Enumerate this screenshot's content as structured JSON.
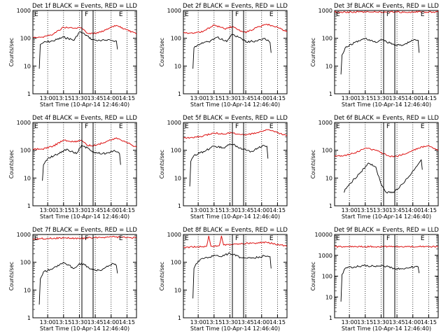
{
  "chart_data": [
    {
      "type": "line",
      "title": "Det 1f BLACK = Events, RED = LLD",
      "xlabel": "Start Time (10-Apr-14 12:46:40)",
      "ylabel": "Counts/sec",
      "ylim": [
        1,
        1000
      ],
      "yscale": "log",
      "yticks": [
        "1",
        "10",
        "100",
        "1000"
      ],
      "xticks": [
        "13:00",
        "13:15",
        "13:30",
        "13:45",
        "14:00",
        "14:15"
      ],
      "markers": [
        {
          "label": "E",
          "t": -0.06
        },
        {
          "label": "F",
          "t": 0.44
        },
        {
          "label": "E",
          "t": 0.77
        }
      ],
      "series": [
        {
          "name": "BLACK = Events",
          "color": "#000000",
          "x": [
            "12:52",
            "12:53",
            "12:56",
            "13:05",
            "13:15",
            "13:25",
            "13:30",
            "13:35",
            "13:42",
            "13:50",
            "13:57",
            "14:02",
            "14:05",
            "14:06"
          ],
          "values": [
            8,
            60,
            70,
            80,
            110,
            85,
            170,
            140,
            90,
            80,
            90,
            80,
            80,
            40
          ]
        },
        {
          "name": "RED = LLD",
          "color": "#dd1111",
          "x": [
            "12:46",
            "12:55",
            "13:05",
            "13:15",
            "13:25",
            "13:32",
            "13:38",
            "13:45",
            "13:55",
            "14:05",
            "14:15",
            "14:24"
          ],
          "values": [
            110,
            110,
            140,
            250,
            230,
            240,
            150,
            150,
            200,
            290,
            200,
            140
          ]
        }
      ]
    },
    {
      "type": "line",
      "title": "Det 2f BLACK = Events, RED = LLD",
      "xlabel": "Start Time (10-Apr-14 12:46:40)",
      "ylabel": "Counts/sec",
      "ylim": [
        1,
        1000
      ],
      "yscale": "log",
      "yticks": [
        "1",
        "10",
        "100",
        "1000"
      ],
      "xticks": [
        "13:00",
        "13:15",
        "13:30",
        "13:45",
        "14:00",
        "14:15"
      ],
      "markers": [
        {
          "label": "E",
          "t": -0.06
        },
        {
          "label": "F",
          "t": 0.44
        },
        {
          "label": "E",
          "t": 0.77
        }
      ],
      "series": [
        {
          "name": "BLACK = Events",
          "color": "#000000",
          "x": [
            "12:55",
            "12:56",
            "13:00",
            "13:10",
            "13:18",
            "13:27",
            "13:32",
            "13:38",
            "13:45",
            "13:55",
            "14:03",
            "14:08",
            "14:09"
          ],
          "values": [
            8,
            45,
            60,
            75,
            110,
            75,
            140,
            110,
            75,
            80,
            100,
            70,
            30
          ]
        },
        {
          "name": "RED = LLD",
          "color": "#dd1111",
          "x": [
            "12:46",
            "12:55",
            "13:05",
            "13:15",
            "13:25",
            "13:32",
            "13:38",
            "13:45",
            "13:55",
            "14:05",
            "14:15",
            "14:24"
          ],
          "values": [
            160,
            150,
            180,
            300,
            220,
            260,
            200,
            160,
            240,
            320,
            250,
            170
          ]
        }
      ]
    },
    {
      "type": "line",
      "title": "Det 3f BLACK = Events, RED = LLD",
      "xlabel": "Start Time (10-Apr-14 12:46:40)",
      "ylabel": "Counts/sec",
      "ylim": [
        1,
        1000
      ],
      "yscale": "log",
      "yticks": [
        "1",
        "10",
        "100",
        "1000"
      ],
      "xticks": [
        "13:00",
        "13:15",
        "13:30",
        "13:45",
        "14:00",
        "14:15"
      ],
      "markers": [
        {
          "label": "E",
          "t": -0.06
        },
        {
          "label": "F",
          "t": 0.44
        },
        {
          "label": "E",
          "t": 0.77
        }
      ],
      "series": [
        {
          "name": "BLACK = Events",
          "color": "#000000",
          "x": [
            "12:52",
            "12:53",
            "12:56",
            "13:05",
            "13:15",
            "13:25",
            "13:30",
            "13:35",
            "13:42",
            "13:50",
            "13:57",
            "14:02",
            "14:05",
            "14:06"
          ],
          "values": [
            5,
            25,
            45,
            70,
            100,
            70,
            90,
            75,
            60,
            55,
            75,
            90,
            85,
            30
          ]
        },
        {
          "name": "RED = LLD",
          "color": "#dd1111",
          "x": [
            "12:46",
            "13:00",
            "13:15",
            "13:30",
            "13:45",
            "14:00",
            "14:15",
            "14:24"
          ],
          "values": [
            880,
            880,
            890,
            880,
            880,
            890,
            880,
            880
          ]
        }
      ]
    },
    {
      "type": "line",
      "title": "Det 4f BLACK = Events, RED = LLD",
      "xlabel": "Start Time (10-Apr-14 12:46:40)",
      "ylabel": "Counts/sec",
      "ylim": [
        1,
        1000
      ],
      "yscale": "log",
      "yticks": [
        "1",
        "10",
        "100",
        "1000"
      ],
      "xticks": [
        "13:00",
        "13:15",
        "13:30",
        "13:45",
        "14:00",
        "14:15"
      ],
      "markers": [
        {
          "label": "E",
          "t": -0.06
        },
        {
          "label": "F",
          "t": 0.44
        },
        {
          "label": "E",
          "t": 0.77
        }
      ],
      "series": [
        {
          "name": "BLACK = Events",
          "color": "#000000",
          "x": [
            "12:55",
            "12:56",
            "13:00",
            "13:10",
            "13:18",
            "13:27",
            "13:32",
            "13:38",
            "13:45",
            "13:55",
            "14:03",
            "14:08",
            "14:09"
          ],
          "values": [
            8,
            30,
            50,
            75,
            110,
            75,
            150,
            120,
            80,
            75,
            100,
            75,
            30
          ]
        },
        {
          "name": "RED = LLD",
          "color": "#dd1111",
          "x": [
            "12:46",
            "12:55",
            "13:05",
            "13:15",
            "13:25",
            "13:32",
            "13:38",
            "13:45",
            "13:55",
            "14:05",
            "14:15",
            "14:24"
          ],
          "values": [
            110,
            110,
            140,
            230,
            200,
            230,
            150,
            150,
            200,
            280,
            190,
            130
          ]
        }
      ]
    },
    {
      "type": "line",
      "title": "Det 5f BLACK = Events, RED = LLD",
      "xlabel": "Start Time (10-Apr-14 12:46:40)",
      "ylabel": "Counts/sec",
      "ylim": [
        1,
        1000
      ],
      "yscale": "log",
      "yticks": [
        "1",
        "10",
        "100",
        "1000"
      ],
      "xticks": [
        "13:00",
        "13:15",
        "13:30",
        "13:45",
        "14:00",
        "14:15"
      ],
      "markers": [
        {
          "label": "E",
          "t": -0.06
        },
        {
          "label": "F",
          "t": 0.44
        },
        {
          "label": "E",
          "t": 0.77
        }
      ],
      "series": [
        {
          "name": "BLACK = Events",
          "color": "#000000",
          "x": [
            "12:52",
            "12:53",
            "12:56",
            "13:05",
            "13:15",
            "13:25",
            "13:30",
            "13:35",
            "13:42",
            "13:50",
            "13:57",
            "14:02",
            "14:05",
            "14:06"
          ],
          "values": [
            5,
            40,
            65,
            90,
            140,
            120,
            170,
            150,
            110,
            90,
            120,
            150,
            140,
            50
          ]
        },
        {
          "name": "RED = LLD",
          "color": "#dd1111",
          "x": [
            "12:46",
            "12:55",
            "13:05",
            "13:15",
            "13:25",
            "13:32",
            "13:38",
            "13:45",
            "13:55",
            "14:05",
            "14:15",
            "14:24"
          ],
          "values": [
            280,
            280,
            330,
            420,
            380,
            440,
            380,
            350,
            420,
            550,
            430,
            330
          ]
        }
      ]
    },
    {
      "type": "line",
      "title": "Det 6f BLACK = Events, RED = LLD",
      "xlabel": "Start Time (10-Apr-14 12:46:40)",
      "ylabel": "Counts/sec",
      "ylim": [
        1,
        1000
      ],
      "yscale": "log",
      "yticks": [
        "1",
        "10",
        "100",
        "1000"
      ],
      "xticks": [
        "13:00",
        "13:15",
        "13:30",
        "13:45",
        "14:00",
        "14:15"
      ],
      "markers": [
        {
          "label": "E",
          "t": -0.06
        },
        {
          "label": "F",
          "t": 0.44
        },
        {
          "label": "E",
          "t": 0.77
        }
      ],
      "series": [
        {
          "name": "BLACK = Events",
          "color": "#000000",
          "x": [
            "12:55",
            "12:56",
            "13:00",
            "13:10",
            "13:18",
            "13:25",
            "13:30",
            "13:35",
            "13:42",
            "13:50",
            "13:57",
            "14:03",
            "14:08",
            "14:09"
          ],
          "values": [
            3,
            4,
            6,
            15,
            35,
            25,
            6,
            3,
            3,
            6,
            12,
            25,
            45,
            20
          ]
        },
        {
          "name": "RED = LLD",
          "color": "#dd1111",
          "x": [
            "12:46",
            "12:55",
            "13:05",
            "13:15",
            "13:25",
            "13:32",
            "13:38",
            "13:45",
            "13:55",
            "14:05",
            "14:15",
            "14:24"
          ],
          "values": [
            60,
            65,
            80,
            120,
            100,
            75,
            60,
            60,
            80,
            120,
            150,
            100
          ]
        }
      ]
    },
    {
      "type": "line",
      "title": "Det 7f BLACK = Events, RED = LLD",
      "xlabel": "Start Time (10-Apr-14 12:46:40)",
      "ylabel": "Counts/sec",
      "ylim": [
        1,
        1000
      ],
      "yscale": "log",
      "yticks": [
        "1",
        "10",
        "100",
        "1000"
      ],
      "xticks": [
        "13:00",
        "13:15",
        "13:30",
        "13:45",
        "14:00",
        "14:15"
      ],
      "markers": [
        {
          "label": "E",
          "t": -0.06
        },
        {
          "label": "F",
          "t": 0.44
        },
        {
          "label": "E",
          "t": 0.77
        }
      ],
      "series": [
        {
          "name": "BLACK = Events",
          "color": "#000000",
          "x": [
            "12:52",
            "12:53",
            "12:56",
            "13:05",
            "13:15",
            "13:25",
            "13:30",
            "13:35",
            "13:42",
            "13:50",
            "13:57",
            "14:02",
            "14:05",
            "14:06"
          ],
          "values": [
            3,
            25,
            45,
            60,
            100,
            60,
            90,
            80,
            55,
            50,
            70,
            90,
            75,
            40
          ]
        },
        {
          "name": "RED = LLD",
          "color": "#dd1111",
          "x": [
            "12:46",
            "13:00",
            "13:15",
            "13:30",
            "13:45",
            "14:00",
            "14:15",
            "14:24"
          ],
          "values": [
            700,
            720,
            750,
            720,
            780,
            820,
            780,
            760
          ]
        }
      ]
    },
    {
      "type": "line",
      "title": "Det 8f BLACK = Events, RED = LLD",
      "xlabel": "Start Time (10-Apr-14 12:46:40)",
      "ylabel": "Counts/sec",
      "ylim": [
        1,
        1000
      ],
      "yscale": "log",
      "yticks": [
        "1",
        "10",
        "100",
        "1000"
      ],
      "xticks": [
        "13:00",
        "13:15",
        "13:30",
        "13:45",
        "14:00",
        "14:15"
      ],
      "markers": [
        {
          "label": "E",
          "t": -0.06
        },
        {
          "label": "F",
          "t": 0.44
        },
        {
          "label": "E",
          "t": 0.77
        }
      ],
      "series": [
        {
          "name": "BLACK = Events",
          "color": "#000000",
          "x": [
            "12:55",
            "12:56",
            "13:00",
            "13:06",
            "13:10",
            "13:15",
            "13:20",
            "13:30",
            "13:40",
            "13:50",
            "14:03",
            "14:08",
            "14:09"
          ],
          "values": [
            5,
            60,
            110,
            140,
            150,
            180,
            160,
            210,
            150,
            140,
            170,
            160,
            60
          ]
        },
        {
          "name": "RED = LLD",
          "color": "#dd1111",
          "x": [
            "12:46",
            "13:00",
            "13:08",
            "13:10",
            "13:12",
            "13:20",
            "13:22",
            "13:24",
            "13:35",
            "13:50",
            "14:05",
            "14:24"
          ],
          "values": [
            350,
            360,
            380,
            900,
            380,
            400,
            900,
            420,
            460,
            480,
            520,
            380
          ]
        }
      ]
    },
    {
      "type": "line",
      "title": "Det 9f BLACK = Events, RED = LLD",
      "xlabel": "Start Time (10-Apr-14 12:46:40)",
      "ylabel": "Counts/sec",
      "ylim": [
        1,
        10000
      ],
      "yscale": "log",
      "yticks": [
        "1",
        "10",
        "100",
        "1000",
        "10000"
      ],
      "xticks": [
        "13:00",
        "13:15",
        "13:30",
        "13:45",
        "14:00",
        "14:15"
      ],
      "markers": [
        {
          "label": "E",
          "t": -0.06
        },
        {
          "label": "F",
          "t": 0.44
        },
        {
          "label": "E",
          "t": 0.77
        }
      ],
      "series": [
        {
          "name": "BLACK = Events",
          "color": "#000000",
          "x": [
            "12:52",
            "12:53",
            "12:56",
            "13:05",
            "13:15",
            "13:25",
            "13:30",
            "13:35",
            "13:42",
            "13:50",
            "13:57",
            "14:02",
            "14:05",
            "14:06"
          ],
          "values": [
            6,
            120,
            240,
            280,
            330,
            280,
            320,
            300,
            240,
            230,
            260,
            290,
            280,
            140
          ]
        },
        {
          "name": "RED = LLD",
          "color": "#dd1111",
          "x": [
            "12:46",
            "13:00",
            "13:15",
            "13:30",
            "13:45",
            "14:00",
            "14:15",
            "14:24"
          ],
          "values": [
            2600,
            2600,
            2620,
            2600,
            2610,
            2620,
            2600,
            2600
          ]
        }
      ]
    }
  ]
}
